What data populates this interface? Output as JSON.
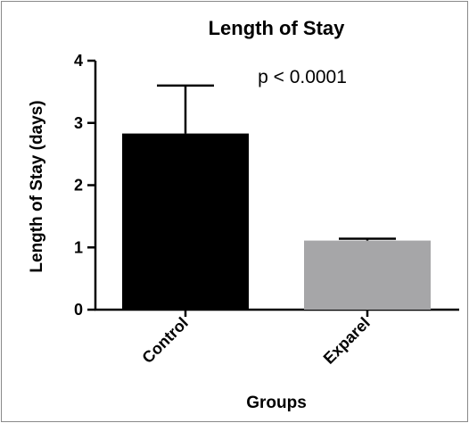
{
  "chart_data": {
    "type": "bar",
    "title": "Length of Stay",
    "xlabel": "Groups",
    "ylabel": "Length of Stay (days)",
    "categories": [
      "Control",
      "Exparel"
    ],
    "values": [
      2.83,
      1.11
    ],
    "error_upper": [
      3.6,
      1.14
    ],
    "colors": [
      "#000000",
      "#a6a6a8"
    ],
    "ylim": [
      0,
      4
    ],
    "yticks": [
      "0",
      "1",
      "2",
      "3",
      "4"
    ],
    "annotation": "p < 0.0001",
    "grid": false,
    "legend": "none"
  }
}
